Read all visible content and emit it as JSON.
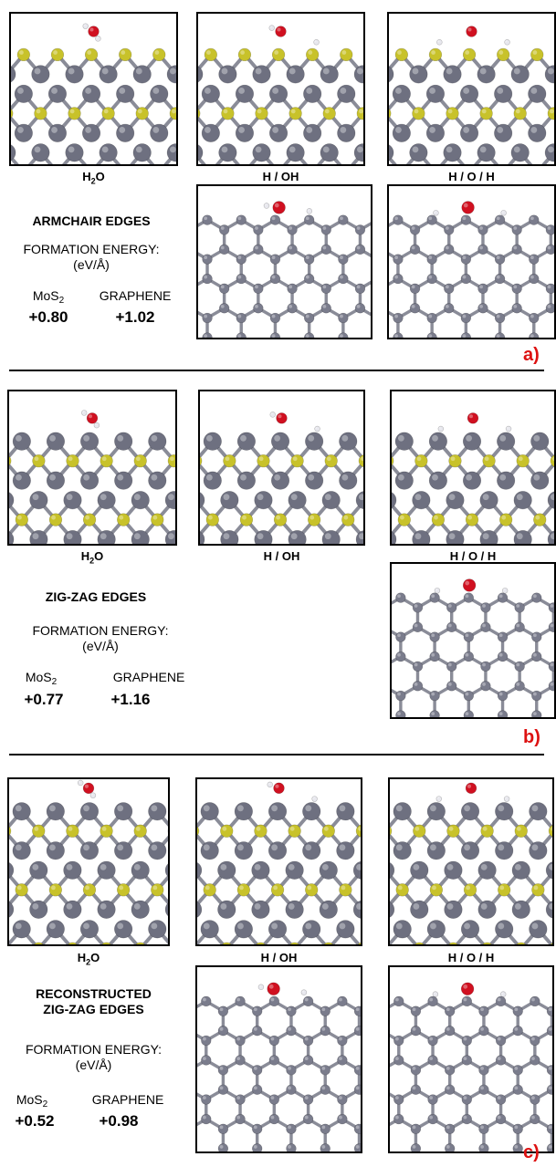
{
  "sections": [
    {
      "title_lines": [
        "ARMCHAIR EDGES"
      ],
      "formation_label": [
        "FORMATION ENERGY:",
        "(eV/Å)"
      ],
      "mos2_label": "MoS",
      "mos2_sub": "2",
      "graphene_label": "GRAPHENE",
      "mos2_value": "+0.80",
      "graphene_value": "+1.02",
      "captions": [
        "H₂O",
        "H / OH",
        "H / O / H"
      ],
      "panel_label": "a)"
    },
    {
      "title_lines": [
        "ZIG-ZAG EDGES"
      ],
      "formation_label": [
        "FORMATION ENERGY:",
        "(eV/Å)"
      ],
      "mos2_label": "MoS",
      "mos2_sub": "2",
      "graphene_label": "GRAPHENE",
      "mos2_value": "+0.77",
      "graphene_value": "+1.16",
      "captions": [
        "H₂O",
        "H / OH",
        "H / O / H"
      ],
      "panel_label": "b)"
    },
    {
      "title_lines": [
        "RECONSTRUCTED",
        "ZIG-ZAG EDGES"
      ],
      "formation_label": [
        "FORMATION ENERGY:",
        "(eV/Å)"
      ],
      "mos2_label": "MoS",
      "mos2_sub": "2",
      "graphene_label": "GRAPHENE",
      "mos2_value": "+0.52",
      "graphene_value": "+0.98",
      "captions": [
        "H₂O",
        "H / OH",
        "H / O / H"
      ],
      "panel_label": "c)"
    }
  ],
  "colors": {
    "mo_atom": "#6e7080",
    "s_atom": "#c8c22a",
    "c_atom": "#7a7c8c",
    "o_atom": "#d01020",
    "h_atom": "#e8e8ee",
    "bond": "#8a8c98",
    "label_red": "#dd1111"
  }
}
